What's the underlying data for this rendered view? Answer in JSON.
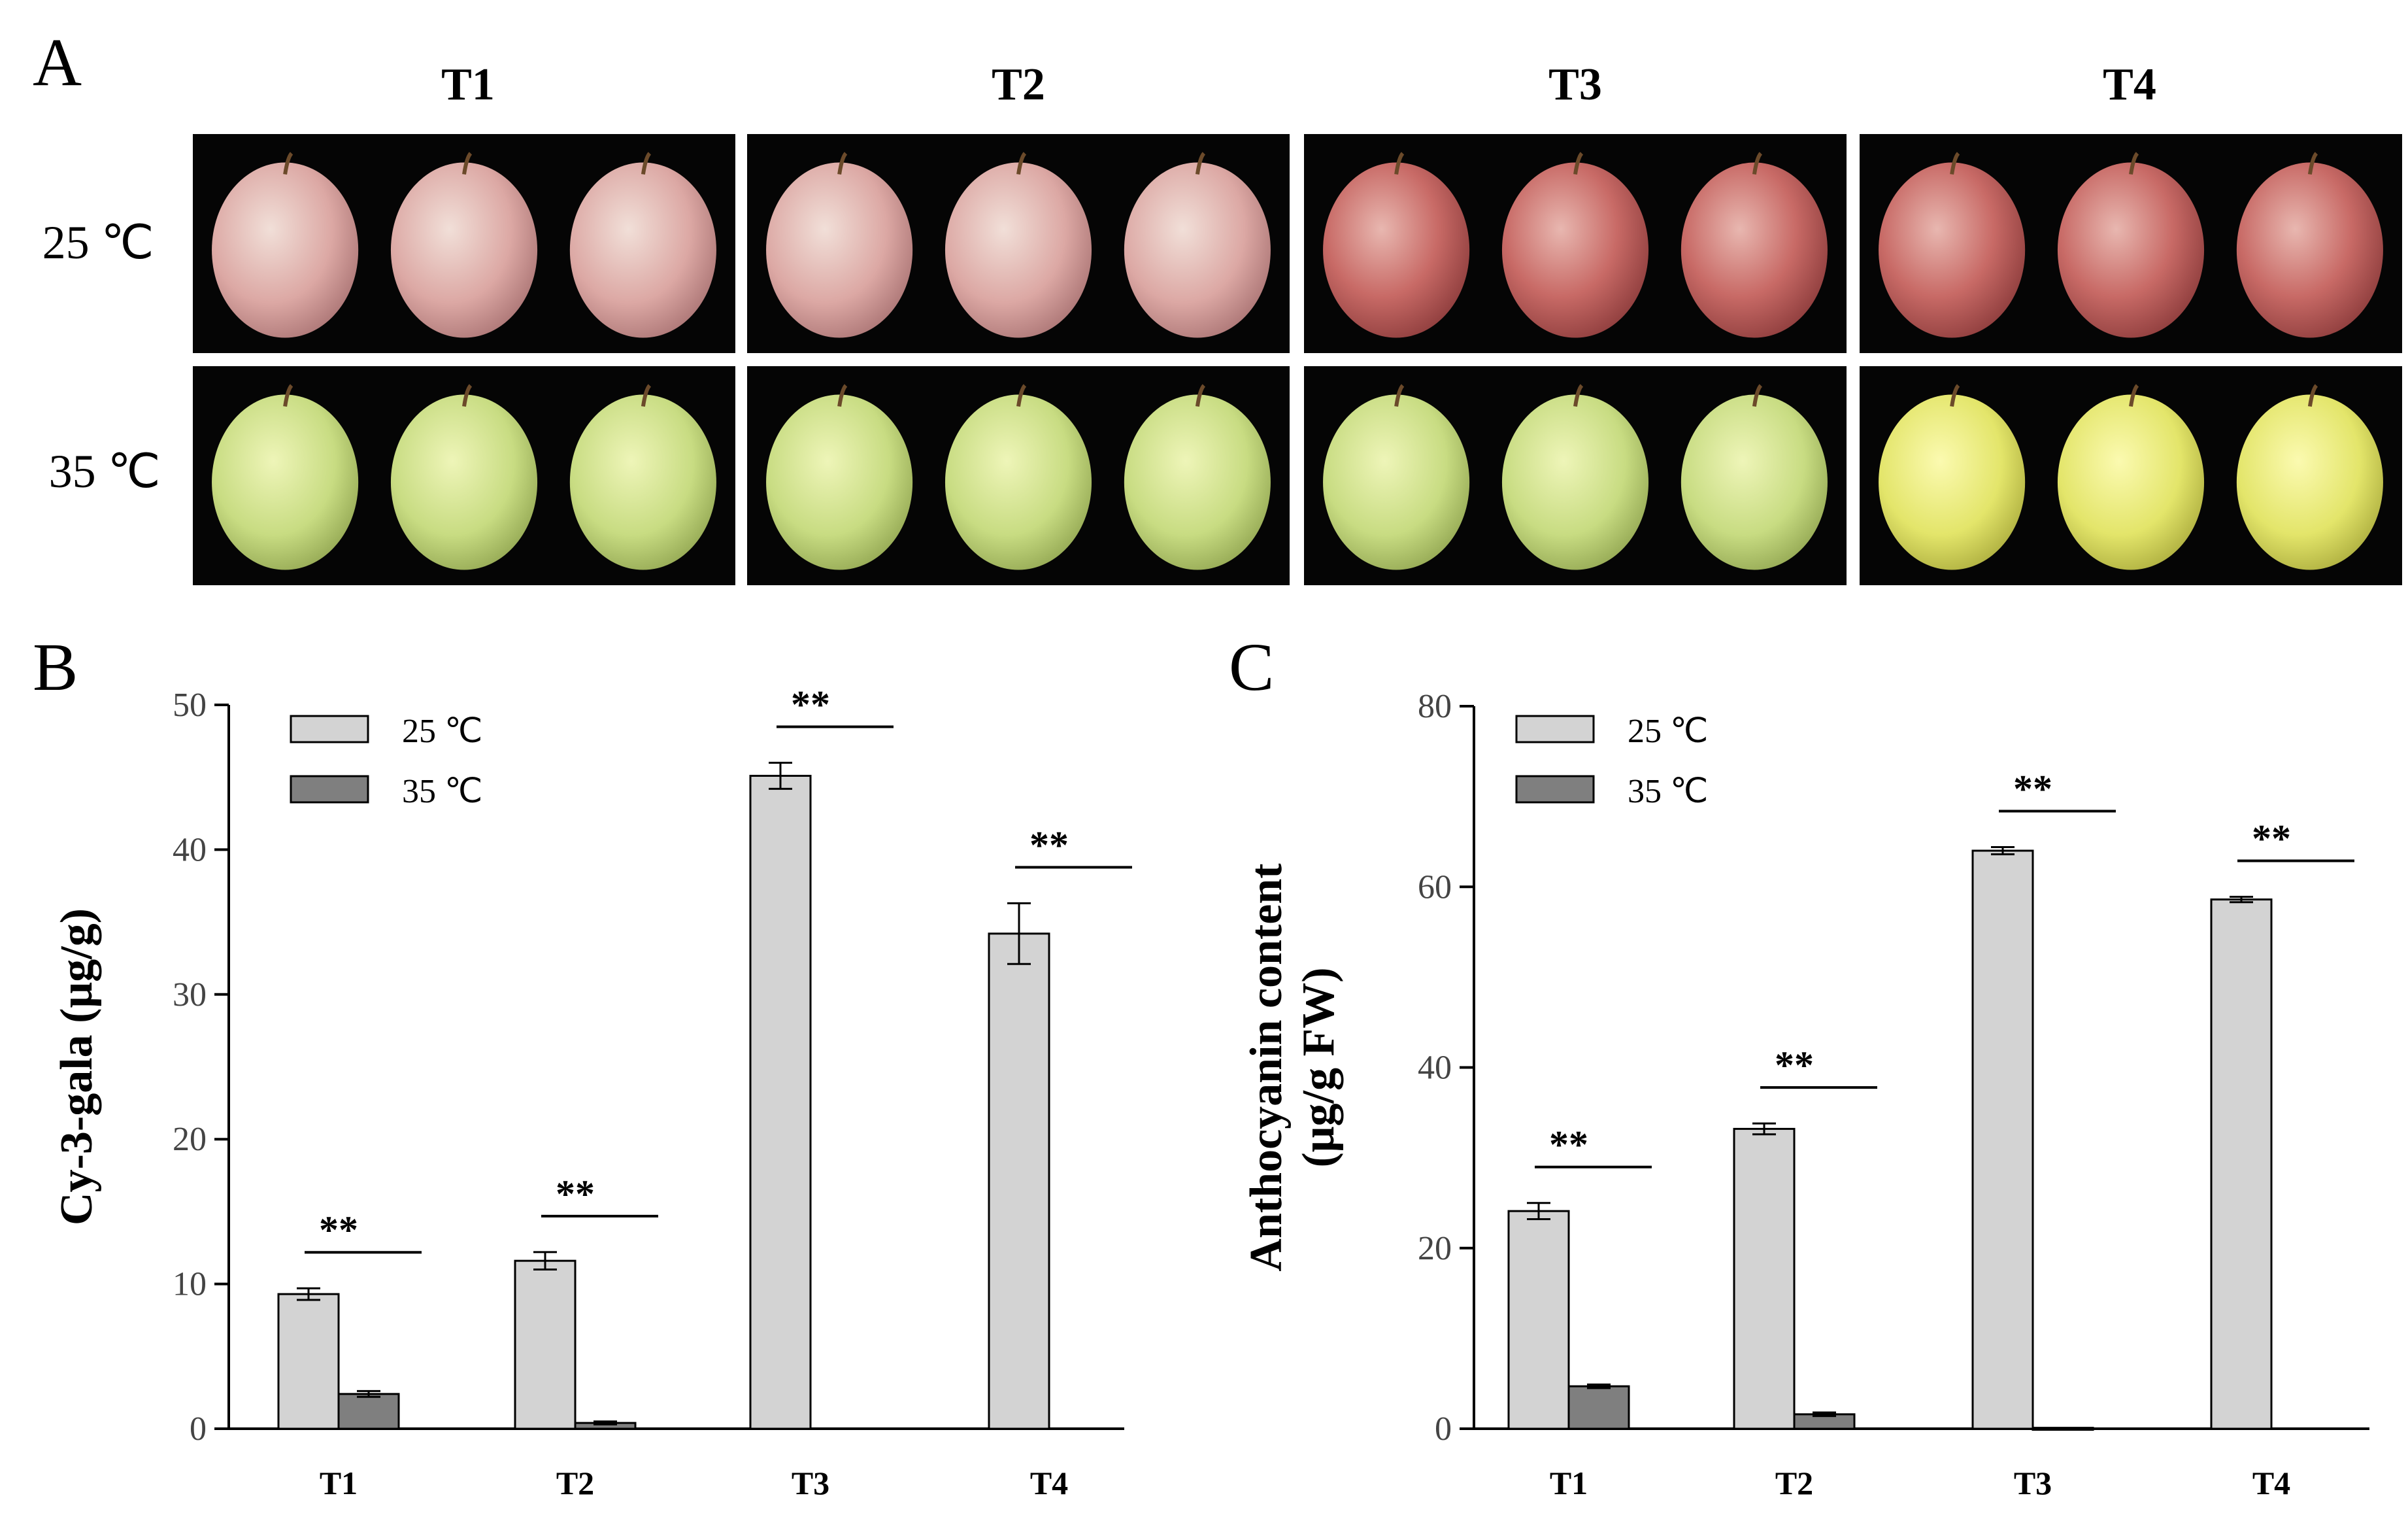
{
  "figure": {
    "panel_letters": [
      "A",
      "B",
      "C"
    ],
    "photo_panel": {
      "columns": [
        "T1",
        "T2",
        "T3",
        "T4"
      ],
      "rows": [
        "25 ℃",
        "35 ℃"
      ]
    }
  },
  "colors": {
    "bar_25": "#d3d3d3",
    "bar_35": "#7f7f7f",
    "photo_bg": "#050505"
  },
  "chart_data": [
    {
      "type": "bar",
      "panel": "B",
      "categories": [
        "T1",
        "T2",
        "T3",
        "T4"
      ],
      "ylabel": "Cy-3-gala (μg/g)",
      "ylim": [
        0,
        50
      ],
      "yticks": [
        0,
        10,
        20,
        30,
        40,
        50
      ],
      "legend_position": "top-left",
      "series": [
        {
          "name": "25 ℃",
          "values": [
            9.3,
            11.6,
            45.1,
            34.2
          ],
          "errors": [
            0.4,
            0.6,
            0.9,
            2.1
          ]
        },
        {
          "name": "35 ℃",
          "values": [
            2.4,
            0.4,
            0,
            0
          ],
          "errors": [
            0.2,
            0.1,
            0,
            0
          ]
        }
      ],
      "significance": [
        "**",
        "**",
        "**",
        "**"
      ]
    },
    {
      "type": "bar",
      "panel": "C",
      "categories": [
        "T1",
        "T2",
        "T3",
        "T4"
      ],
      "ylabel": "Anthocyanin content (μg/g FW)",
      "ylabel_lines": [
        "Anthocyanin content",
        "(μg/g FW)"
      ],
      "ylim": [
        0,
        80
      ],
      "yticks": [
        0,
        20,
        40,
        60,
        80
      ],
      "legend_position": "top-left",
      "series": [
        {
          "name": "25 ℃",
          "values": [
            24.1,
            33.2,
            64.0,
            58.6
          ],
          "errors": [
            0.9,
            0.6,
            0.4,
            0.3
          ]
        },
        {
          "name": "35 ℃",
          "values": [
            4.7,
            1.6,
            0.1,
            0
          ],
          "errors": [
            0.2,
            0.2,
            0,
            0
          ]
        }
      ],
      "significance": [
        "**",
        "**",
        "**",
        "**"
      ]
    }
  ]
}
